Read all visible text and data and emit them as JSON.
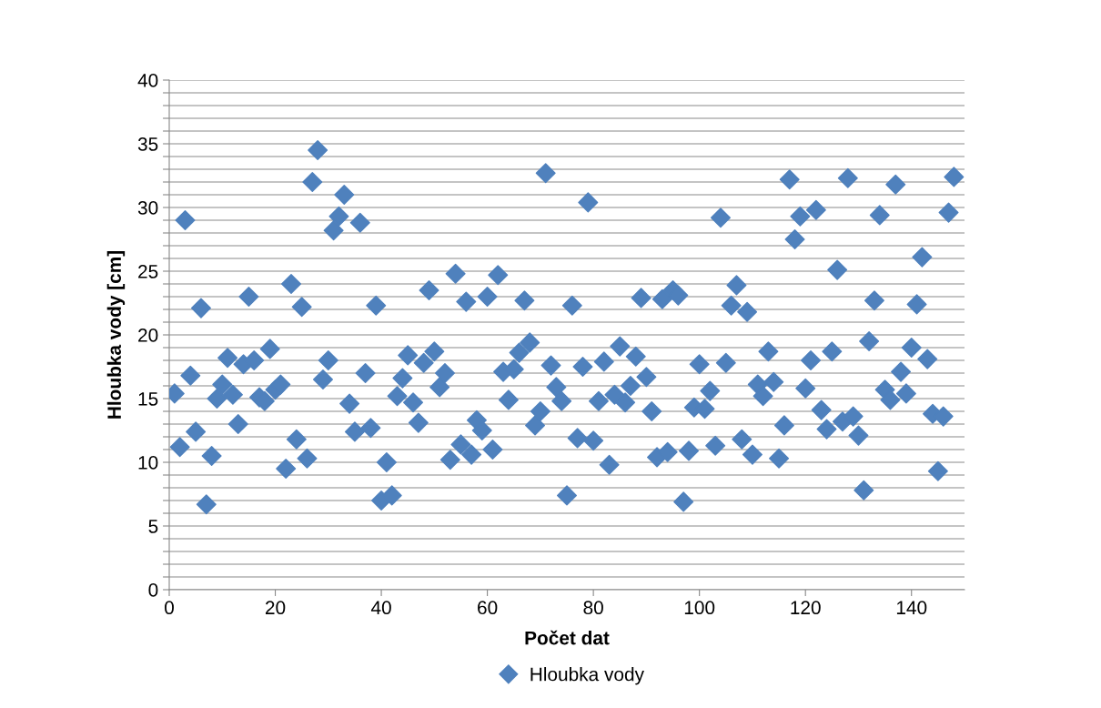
{
  "chart_data": {
    "type": "scatter",
    "xlabel": "Počet dat",
    "ylabel": "Hloubka vody [cm]",
    "x": [
      1,
      2,
      3,
      4,
      5,
      6,
      7,
      8,
      9,
      10,
      11,
      12,
      13,
      14,
      15,
      16,
      17,
      18,
      19,
      20,
      21,
      22,
      23,
      24,
      25,
      26,
      27,
      28,
      29,
      30,
      31,
      32,
      33,
      34,
      35,
      36,
      37,
      38,
      39,
      40,
      41,
      42,
      43,
      44,
      45,
      46,
      47,
      48,
      49,
      50,
      51,
      52,
      53,
      54,
      55,
      56,
      57,
      58,
      59,
      60,
      61,
      62,
      63,
      64,
      65,
      66,
      67,
      68,
      69,
      70,
      71,
      72,
      73,
      74,
      75,
      76,
      77,
      78,
      79,
      80,
      81,
      82,
      83,
      84,
      85,
      86,
      87,
      88,
      89,
      90,
      91,
      92,
      93,
      94,
      95,
      96,
      97,
      98,
      99,
      100,
      101,
      102,
      103,
      104,
      105,
      106,
      107,
      108,
      109,
      110,
      111,
      112,
      113,
      114,
      115,
      116,
      117,
      118,
      119,
      120,
      121,
      122,
      123,
      124,
      125,
      126,
      127,
      128,
      129,
      130,
      131,
      132,
      133,
      134,
      135,
      136,
      137,
      138,
      139,
      140,
      141,
      142,
      143,
      144,
      145,
      146,
      147,
      148
    ],
    "series": [
      {
        "name": "Hloubka vody",
        "color": "#4f81bd",
        "values": [
          15.4,
          11.2,
          29.0,
          16.8,
          12.4,
          22.1,
          6.7,
          10.5,
          15.0,
          16.1,
          18.2,
          15.3,
          13.0,
          17.7,
          23.0,
          18.0,
          15.1,
          14.8,
          18.9,
          15.7,
          16.1,
          9.5,
          24.0,
          11.8,
          22.2,
          10.3,
          32.0,
          34.5,
          16.5,
          18.0,
          28.2,
          29.3,
          31.0,
          14.6,
          12.4,
          28.8,
          17.0,
          12.7,
          22.3,
          7.0,
          10.0,
          7.4,
          15.2,
          16.6,
          18.4,
          14.7,
          13.1,
          17.8,
          23.5,
          18.7,
          15.9,
          17.0,
          10.2,
          24.8,
          11.4,
          22.6,
          10.6,
          13.3,
          12.5,
          23.0,
          11.0,
          24.7,
          17.1,
          14.9,
          17.3,
          18.6,
          22.7,
          19.4,
          12.9,
          14.0,
          32.7,
          17.6,
          15.9,
          14.8,
          7.4,
          22.3,
          11.9,
          17.5,
          30.4,
          11.7,
          14.8,
          17.9,
          9.8,
          15.3,
          19.1,
          14.7,
          16.0,
          18.3,
          22.9,
          16.7,
          14.0,
          10.4,
          22.8,
          10.8,
          23.5,
          23.1,
          6.9,
          10.9,
          14.3,
          17.7,
          14.2,
          15.6,
          11.3,
          29.2,
          17.8,
          22.3,
          23.9,
          11.8,
          21.8,
          10.6,
          16.1,
          15.2,
          18.7,
          16.3,
          10.3,
          12.9,
          32.2,
          27.5,
          29.3,
          15.8,
          18.0,
          29.8,
          14.1,
          12.6,
          18.7,
          25.1,
          13.2,
          32.3,
          13.6,
          12.1,
          7.8,
          19.5,
          22.7,
          29.4,
          15.7,
          14.9,
          31.8,
          17.1,
          15.4,
          19.0,
          22.4,
          26.1,
          18.1,
          13.8,
          9.3,
          13.6,
          29.6,
          32.4
        ]
      }
    ],
    "xlim": [
      0,
      150
    ],
    "xticks": [
      0,
      20,
      40,
      60,
      80,
      100,
      120,
      140
    ],
    "ylim": [
      0,
      40
    ],
    "yticks": [
      0,
      {
        "value": 1,
        "label": null
      },
      {
        "value": 2,
        "label": null
      },
      {
        "value": 3,
        "label": null
      },
      {
        "value": 4,
        "label": null
      },
      5,
      {
        "value": 6,
        "label": null
      },
      {
        "value": 7,
        "label": null
      },
      {
        "value": 8,
        "label": null
      },
      {
        "value": 9,
        "label": null
      },
      10,
      {
        "value": 11,
        "label": null
      },
      {
        "value": 12,
        "label": null
      },
      {
        "value": 13,
        "label": null
      },
      {
        "value": 14,
        "label": null
      },
      15,
      {
        "value": 16,
        "label": null
      },
      {
        "value": 17,
        "label": null
      },
      {
        "value": 18,
        "label": null
      },
      {
        "value": 19,
        "label": null
      },
      20,
      {
        "value": 21,
        "label": null
      },
      {
        "value": 22,
        "label": null
      },
      {
        "value": 23,
        "label": null
      },
      {
        "value": 24,
        "label": null
      },
      25,
      {
        "value": 26,
        "label": null
      },
      {
        "value": 27,
        "label": null
      },
      {
        "value": 28,
        "label": null
      },
      {
        "value": 29,
        "label": null
      },
      30,
      {
        "value": 31,
        "label": null
      },
      {
        "value": 32,
        "label": null
      },
      {
        "value": 33,
        "label": null
      },
      {
        "value": 34,
        "label": null
      },
      35,
      {
        "value": 36,
        "label": null
      },
      {
        "value": 37,
        "label": null
      },
      {
        "value": 38,
        "label": null
      },
      {
        "value": 39,
        "label": null
      },
      40
    ],
    "grid": "y",
    "legend": "bottom",
    "marker": "diamond"
  }
}
